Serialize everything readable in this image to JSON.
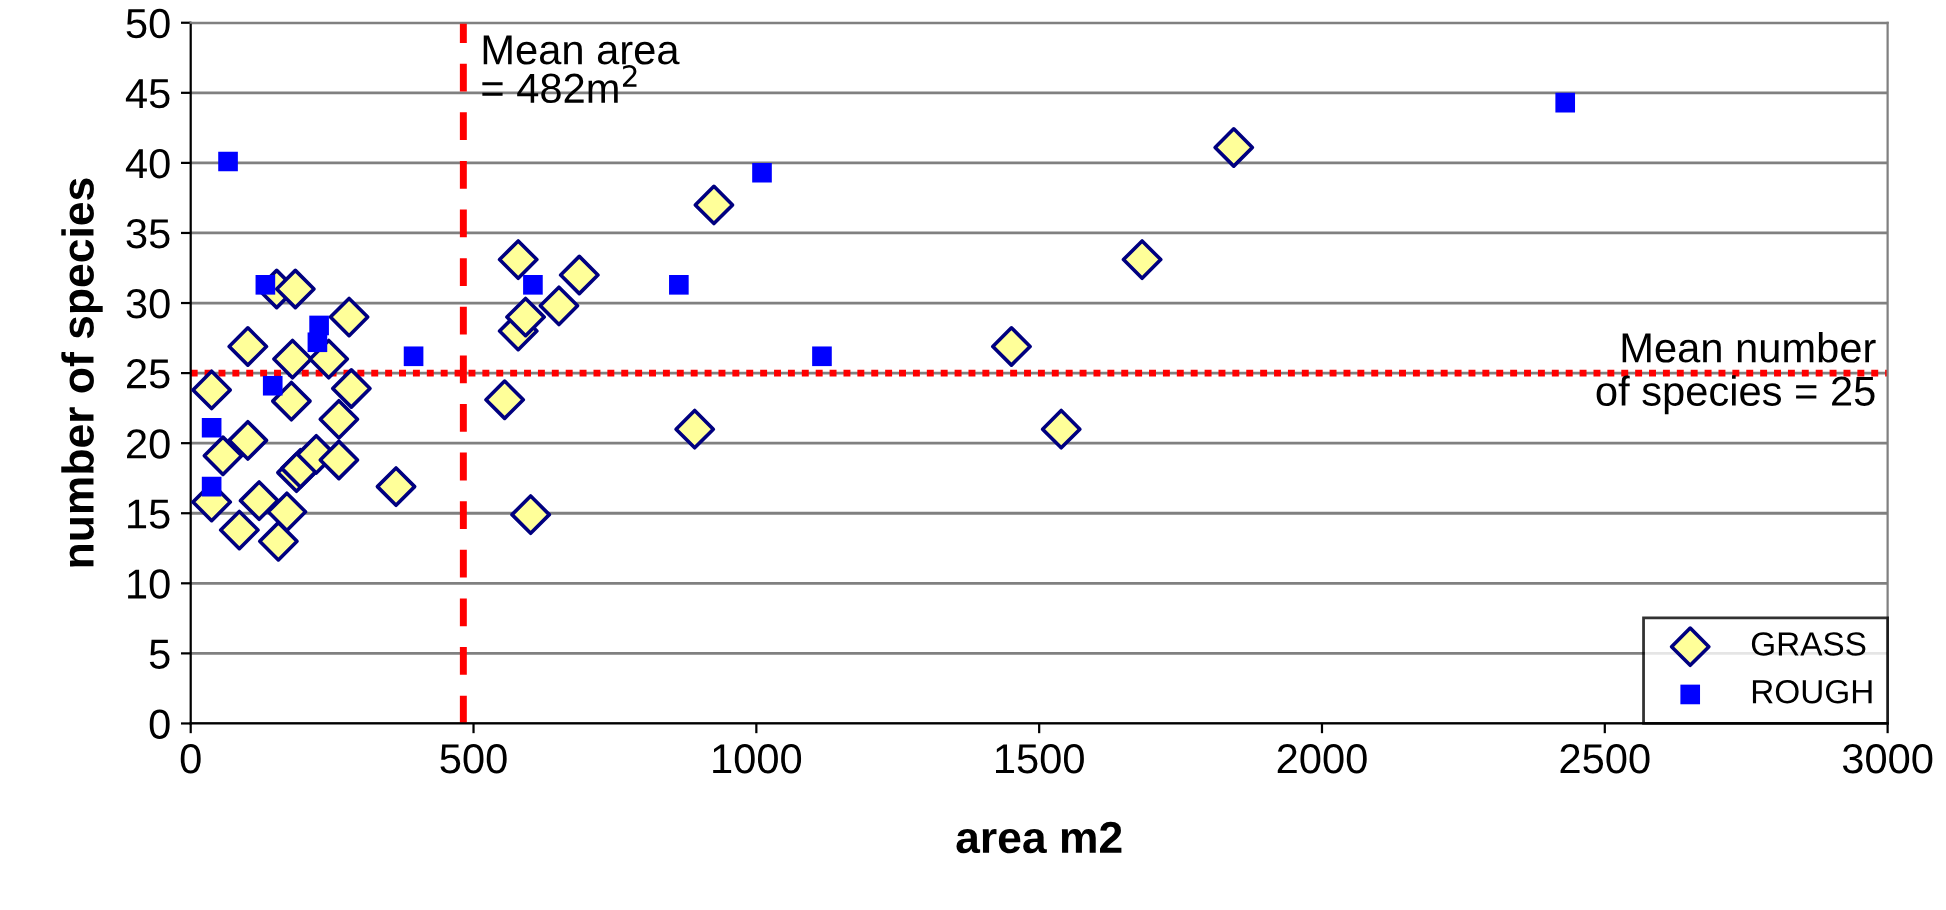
{
  "chart_data": {
    "type": "scatter",
    "xlabel": "area m2",
    "ylabel": "number of species",
    "xlim": [
      0,
      3000
    ],
    "xticks": [
      0,
      500,
      1000,
      1500,
      2000,
      2500,
      3000
    ],
    "ylim": [
      0,
      50
    ],
    "yticks": [
      0,
      5,
      10,
      15,
      20,
      25,
      30,
      35,
      40,
      45,
      50
    ],
    "grid": "y",
    "legend": "bottom right",
    "series": [
      {
        "name": "GRASS",
        "color": "#ffff99",
        "marker": "diamond",
        "x": [
          37,
          37,
          57,
          86,
          101,
          101,
          121,
          152,
          185,
          180,
          178,
          170,
          155,
          187,
          194,
          222,
          244,
          262,
          262,
          280,
          284,
          363,
          555,
          579,
          579,
          592,
          601,
          651,
          687,
          891,
          925,
          1451,
          1539,
          1682,
          1844
        ],
        "values": [
          23.8,
          15.8,
          19.1,
          13.8,
          20.2,
          26.9,
          15.9,
          31.0,
          31.0,
          26.0,
          23.0,
          15.1,
          13.0,
          17.9,
          18.2,
          19.2,
          26.0,
          18.8,
          21.7,
          29.0,
          23.9,
          16.9,
          23.1,
          33.1,
          28.0,
          29.0,
          14.9,
          29.8,
          32.0,
          21.0,
          37.0,
          26.9,
          21.0,
          33.1,
          41.1
        ]
      },
      {
        "name": "ROUGH",
        "color": "#0000ff",
        "marker": "square",
        "x": [
          66,
          132,
          227,
          224,
          145,
          37,
          37,
          394,
          605,
          863,
          1010,
          1116,
          2430
        ],
        "values": [
          40.1,
          31.3,
          28.4,
          27.2,
          24.1,
          21.1,
          16.9,
          26.2,
          31.3,
          31.3,
          39.3,
          26.2,
          44.3
        ]
      }
    ],
    "ref_lines": [
      {
        "axis": "x",
        "value": 482,
        "label": "Mean area\n= 482m$^{2}$",
        "color": "#ff0000",
        "line_style": "dashed"
      },
      {
        "axis": "y",
        "value": 25,
        "label": "Mean number\nof species = 25",
        "color": "#ff0000",
        "line_style": "dotted"
      }
    ]
  }
}
